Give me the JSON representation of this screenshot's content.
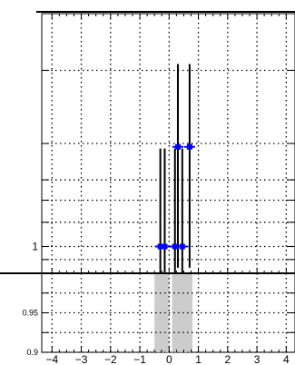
{
  "chart_data": [
    {
      "type": "scatter",
      "title": "",
      "xlabel": "",
      "ylabel": "",
      "yscale": "log",
      "xlim": [
        -4.35,
        4.3
      ],
      "ylim": [
        0.9,
        2.5
      ],
      "ytick_labels": [
        "1"
      ],
      "grid": true,
      "grid_style": "dotted",
      "points": [
        {
          "x": -0.3,
          "y": 1.0,
          "yerr_low": 0.1,
          "yerr_high": 0.47,
          "color": "#0000ff"
        },
        {
          "x": -0.15,
          "y": 1.0,
          "yerr_low": 0.1,
          "yerr_high": 0.47,
          "color": "#0000ff"
        },
        {
          "x": 0.2,
          "y": 1.0,
          "yerr_low": 0.1,
          "yerr_high": 0.47,
          "color": "#0000ff"
        },
        {
          "x": 0.3,
          "y": 1.48,
          "yerr_low": 0.56,
          "yerr_high": 0.57,
          "color": "#0000ff"
        },
        {
          "x": 0.45,
          "y": 1.0,
          "yerr_low": 0.1,
          "yerr_high": 0.47,
          "color": "#0000ff"
        },
        {
          "x": 0.7,
          "y": 1.48,
          "yerr_low": 0.56,
          "yerr_high": 0.57,
          "color": "#0000ff"
        }
      ]
    },
    {
      "type": "bar",
      "title": "",
      "xlabel": "",
      "ylabel": "",
      "xlim": [
        -4.35,
        4.3
      ],
      "ylim": [
        0.9,
        1.0
      ],
      "xtick_labels": [
        "−4",
        "−3",
        "−2",
        "−1",
        "0",
        "1",
        "2",
        "3",
        "4"
      ],
      "ytick_labels": [
        "0.95",
        "0.9"
      ],
      "grid": true,
      "grid_style": "dotted",
      "bars": [
        {
          "x0": -0.5,
          "x1": 0.0,
          "value": 1.0,
          "color": "#cccccc"
        },
        {
          "x0": 0.1,
          "x1": 0.8,
          "value": 1.0,
          "color": "#cccccc"
        }
      ]
    }
  ]
}
